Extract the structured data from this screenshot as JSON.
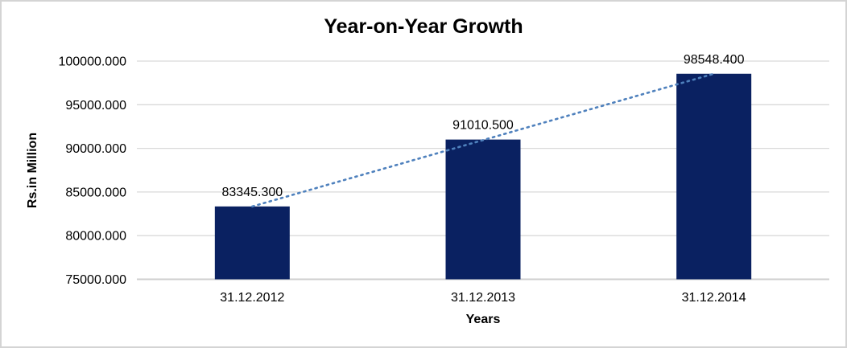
{
  "chart_data": {
    "type": "bar",
    "title": "Year-on-Year Growth",
    "xlabel": "Years",
    "ylabel": "Rs.in Million",
    "categories": [
      "31.12.2012",
      "31.12.2013",
      "31.12.2014"
    ],
    "values": [
      83345.3,
      91010.5,
      98548.4
    ],
    "data_labels": [
      "83345.300",
      "91010.500",
      "98548.400"
    ],
    "ylim": [
      75000,
      100000
    ],
    "y_ticks": [
      {
        "value": 100000,
        "label": "100000.000"
      },
      {
        "value": 95000,
        "label": "95000.000"
      },
      {
        "value": 90000,
        "label": "90000.000"
      },
      {
        "value": 85000,
        "label": "85000.000"
      },
      {
        "value": 80000,
        "label": "80000.000"
      },
      {
        "value": 75000,
        "label": "75000.000"
      }
    ],
    "grid": true,
    "legend": "none",
    "trendline": {
      "type": "linear",
      "style": "dotted",
      "from_category": 0,
      "to_category": 2
    },
    "colors": {
      "bar": "#0a2161",
      "trendline": "#4f81bd",
      "gridline": "#d9d9d9",
      "axis_line": "#cfcfcf",
      "text": "#000000",
      "background": "#ffffff",
      "frame_border": "#d4d4d4"
    }
  }
}
